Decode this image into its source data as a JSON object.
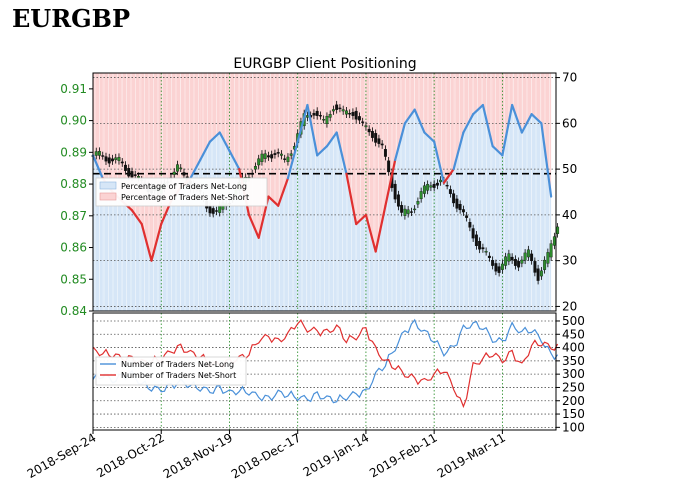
{
  "page": {
    "title": "EURGBP"
  },
  "chart_data": {
    "type": "line",
    "title": "EURGBP Client Positioning",
    "x_tick_labels": [
      "2018-Sep-24",
      "2018-Oct-22",
      "2018-Nov-19",
      "2018-Dec-17",
      "2019-Jan-14",
      "2019-Feb-11",
      "2019-Mar-11"
    ],
    "x_tick_positions": [
      0,
      28,
      56,
      84,
      112,
      140,
      168
    ],
    "x_range": [
      0,
      190
    ],
    "top_panel": {
      "price_axis_left": {
        "ticks": [
          "0.84",
          "0.85",
          "0.86",
          "0.87",
          "0.88",
          "0.89",
          "0.90",
          "0.91"
        ],
        "range": [
          0.84,
          0.915
        ]
      },
      "percent_axis_right": {
        "ticks": [
          "20",
          "30",
          "40",
          "50",
          "60",
          "70"
        ],
        "range": [
          19,
          71
        ]
      },
      "reference_line_percent": 49,
      "legend": [
        "Percentage of Traders Net-Long",
        "Percentage of Traders Net-Short"
      ],
      "percent_net_long_x": [
        0,
        4,
        8,
        12,
        16,
        20,
        24,
        28,
        32,
        36,
        40,
        44,
        48,
        52,
        56,
        60,
        64,
        68,
        72,
        76,
        80,
        84,
        88,
        92,
        96,
        100,
        104,
        108,
        112,
        116,
        120,
        124,
        128,
        132,
        136,
        140,
        144,
        148,
        152,
        156,
        160,
        164,
        168,
        172,
        176,
        180,
        184,
        188
      ],
      "percent_net_long": [
        53,
        48,
        45,
        43,
        41,
        38,
        30,
        38,
        43,
        46,
        48,
        52,
        56,
        58,
        54,
        50,
        40,
        35,
        44,
        42,
        48,
        56,
        64,
        53,
        55,
        58,
        49,
        38,
        40,
        32,
        42,
        52,
        60,
        63,
        58,
        56,
        47,
        50,
        58,
        62,
        64,
        55,
        53,
        64,
        58,
        62,
        60,
        44
      ],
      "price_ohlc_close": [
        0.889,
        0.888,
        0.887,
        0.884,
        0.881,
        0.879,
        0.877,
        0.882,
        0.885,
        0.881,
        0.878,
        0.873,
        0.871,
        0.874,
        0.878,
        0.882,
        0.886,
        0.889,
        0.89,
        0.887,
        0.893,
        0.901,
        0.903,
        0.899,
        0.905,
        0.902,
        0.903,
        0.898,
        0.896,
        0.891,
        0.88,
        0.87,
        0.872,
        0.877,
        0.88,
        0.881,
        0.877,
        0.872,
        0.866,
        0.86,
        0.856,
        0.853,
        0.857,
        0.855,
        0.858,
        0.851,
        0.857,
        0.868
      ]
    },
    "bottom_panel": {
      "right_axis": {
        "ticks": [
          "100",
          "150",
          "200",
          "250",
          "300",
          "350",
          "400",
          "450",
          "500"
        ],
        "range": [
          90,
          530
        ]
      },
      "legend": [
        "Number of Traders Net-Long",
        "Number of Traders Net-Short"
      ],
      "series": [
        {
          "name": "Number of Traders Net-Long",
          "color": "#4a90d9",
          "values": [
            280,
            300,
            275,
            290,
            300,
            265,
            250,
            240,
            255,
            270,
            260,
            250,
            235,
            245,
            230,
            240,
            235,
            215,
            205,
            230,
            225,
            215,
            205,
            220,
            210,
            205,
            215,
            225,
            230,
            300,
            340,
            400,
            460,
            490,
            460,
            430,
            380,
            400,
            470,
            490,
            480,
            430,
            420,
            480,
            460,
            470,
            430,
            370
          ]
        },
        {
          "name": "Number of Traders Net-Short",
          "color": "#e03030",
          "values": [
            390,
            380,
            375,
            360,
            355,
            345,
            350,
            360,
            385,
            400,
            380,
            370,
            340,
            335,
            345,
            360,
            380,
            430,
            440,
            420,
            450,
            500,
            470,
            460,
            455,
            480,
            430,
            440,
            470,
            390,
            350,
            330,
            300,
            280,
            270,
            300,
            320,
            250,
            170,
            330,
            360,
            380,
            350,
            380,
            330,
            410,
            420,
            400
          ]
        }
      ]
    },
    "colors": {
      "net_long": "#4a90d9",
      "net_short": "#e03030",
      "long_fill": "#d6e6f7",
      "short_fill": "#fbd3d3",
      "grid": "#228B22"
    }
  }
}
